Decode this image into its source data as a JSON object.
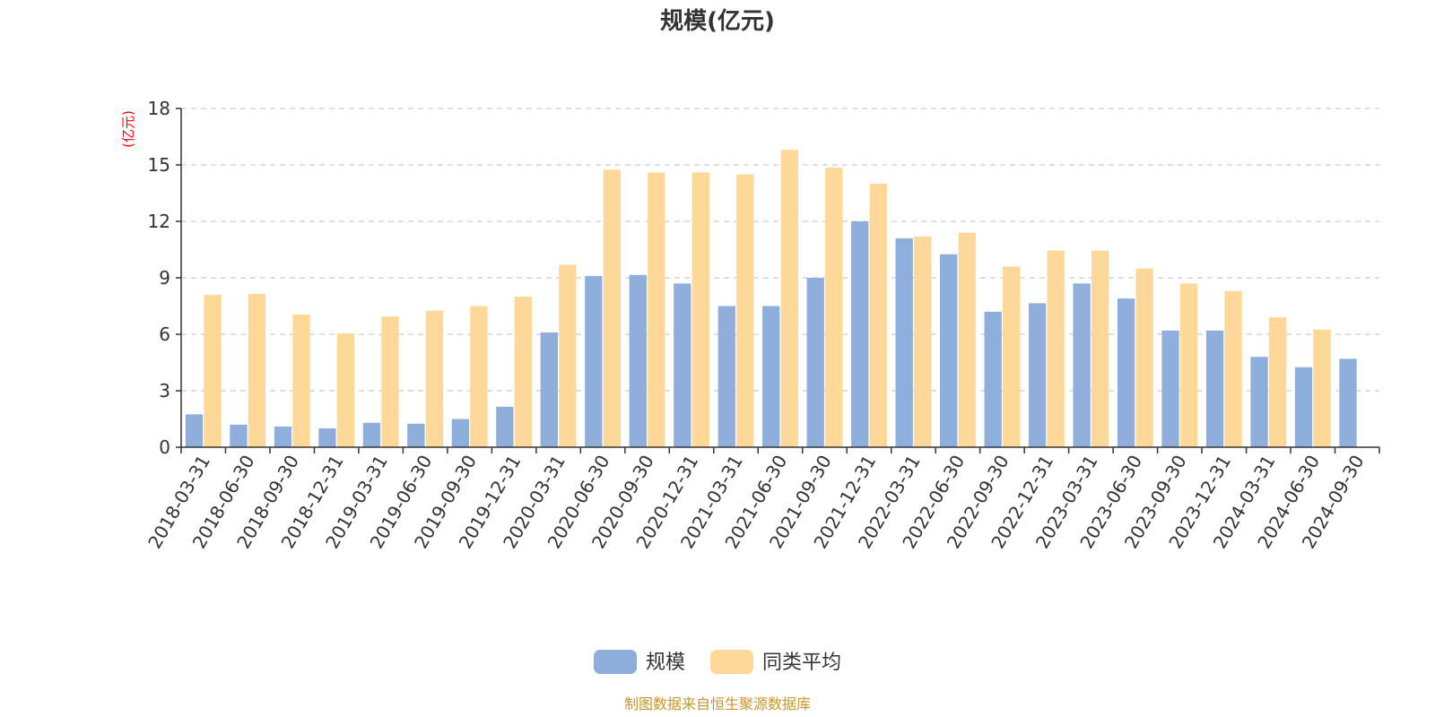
{
  "source_note": "制图数据来自恒生聚源数据库",
  "colors": {
    "series_1": "#8eaedb",
    "series_2": "#fdd898",
    "source": "#c8962a",
    "unit": "#ff0000"
  },
  "chart_data": {
    "type": "bar",
    "title": "规模(亿元)",
    "ylabel": "(亿元)",
    "xlabel": "",
    "ylim": [
      0,
      18
    ],
    "yticks": [
      0,
      3,
      6,
      9,
      12,
      15,
      18
    ],
    "grid": true,
    "legend_position": "bottom",
    "categories": [
      "2018-03-31",
      "2018-06-30",
      "2018-09-30",
      "2018-12-31",
      "2019-03-31",
      "2019-06-30",
      "2019-09-30",
      "2019-12-31",
      "2020-03-31",
      "2020-06-30",
      "2020-09-30",
      "2020-12-31",
      "2021-03-31",
      "2021-06-30",
      "2021-09-30",
      "2021-12-31",
      "2022-03-31",
      "2022-06-30",
      "2022-09-30",
      "2022-12-31",
      "2023-03-31",
      "2023-06-30",
      "2023-09-30",
      "2023-12-31",
      "2024-03-31",
      "2024-06-30",
      "2024-09-30"
    ],
    "series": [
      {
        "name": "规模",
        "color": "#8eaedb",
        "values": [
          1.75,
          1.2,
          1.1,
          1.0,
          1.3,
          1.25,
          1.5,
          2.15,
          6.1,
          9.1,
          9.15,
          8.7,
          7.5,
          7.5,
          9.0,
          12.0,
          11.1,
          10.25,
          7.2,
          7.65,
          8.7,
          7.9,
          6.2,
          6.2,
          4.8,
          4.25,
          4.7
        ]
      },
      {
        "name": "同类平均",
        "color": "#fdd898",
        "values": [
          8.1,
          8.15,
          7.05,
          6.05,
          6.95,
          7.25,
          7.5,
          8.0,
          9.7,
          14.75,
          14.6,
          14.6,
          14.5,
          15.8,
          14.85,
          14.0,
          11.2,
          11.4,
          9.6,
          10.45,
          10.45,
          9.5,
          8.7,
          8.3,
          6.9,
          6.25,
          null
        ]
      }
    ]
  }
}
